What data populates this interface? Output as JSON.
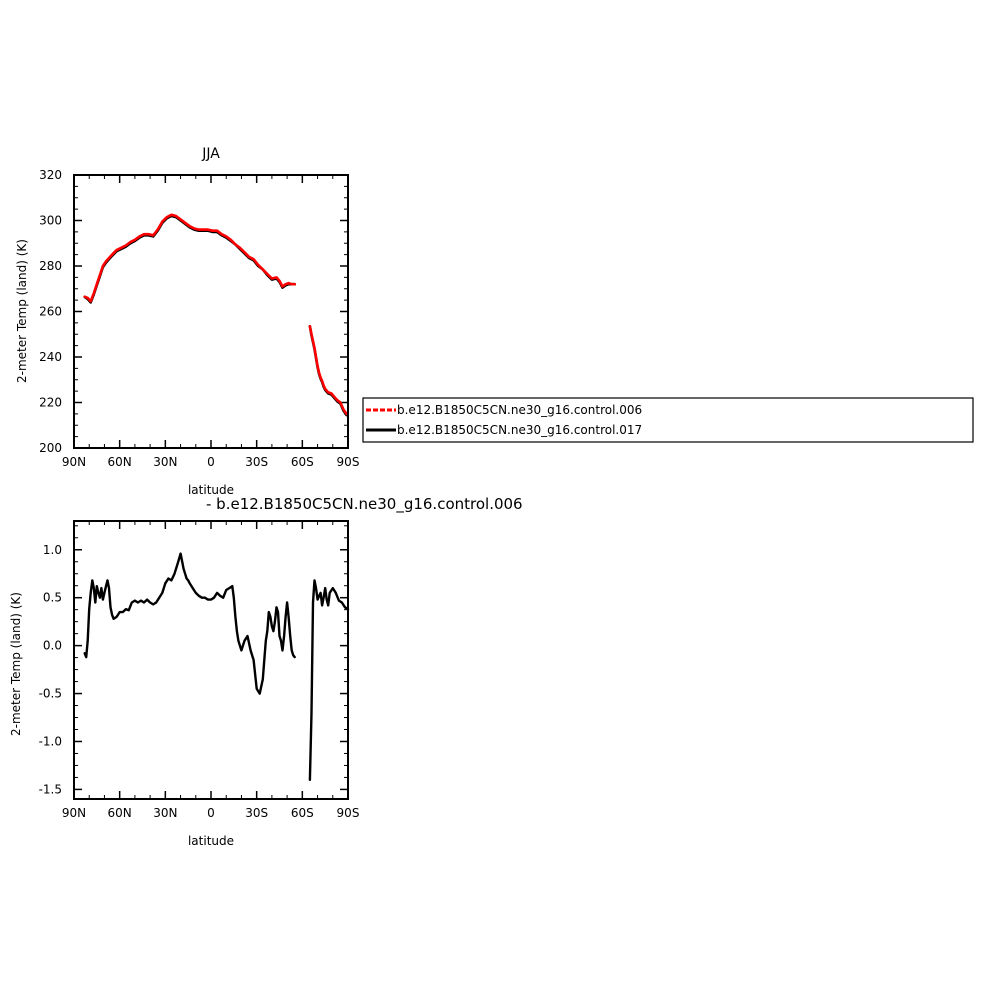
{
  "colors": {
    "run006": "#ff0000",
    "run017": "#000000",
    "diff": "#000000"
  },
  "chart_data": [
    {
      "type": "line",
      "title": "JJA",
      "xlabel": "latitude",
      "ylabel": "2-meter Temp (land) (K)",
      "x_tick_labels": [
        "90N",
        "60N",
        "30N",
        "0",
        "30S",
        "60S",
        "90S"
      ],
      "x_ticks": [
        90,
        60,
        30,
        0,
        -30,
        -60,
        -90
      ],
      "xlim": [
        90,
        -90
      ],
      "y_ticks": [
        200,
        220,
        240,
        260,
        280,
        300,
        320
      ],
      "ylim": [
        200,
        320
      ],
      "legend_placement": "right",
      "legend": [
        {
          "label": "b.e12.B1850C5CN.ne30_g16.control.006",
          "color": "#ff0000",
          "dash": true
        },
        {
          "label": "b.e12.B1850C5CN.ne30_g16.control.017",
          "color": "#000000",
          "dash": false
        }
      ],
      "series": [
        {
          "name": "b.e12.B1850C5CN.ne30_g16.control.006",
          "color": "#ff0000",
          "segments": [
            {
              "x": [
                83,
                81,
                79,
                77,
                75,
                73,
                71,
                69,
                67,
                65,
                62,
                59,
                56,
                53,
                50,
                47,
                44,
                41,
                38,
                35,
                32,
                29,
                26,
                23,
                20,
                17,
                14,
                11,
                8,
                5,
                2,
                -1,
                -4,
                -7,
                -10,
                -13,
                -16,
                -19,
                -22,
                -25,
                -28,
                -31,
                -34,
                -37,
                -40,
                -43,
                -45,
                -47,
                -49,
                -51,
                -53,
                -55
              ],
              "y": [
                266.5,
                266,
                264.5,
                268,
                272,
                276,
                280,
                282,
                283.5,
                285,
                287,
                288,
                289,
                290.5,
                291.5,
                293,
                294,
                294,
                293.5,
                296,
                299.5,
                301.5,
                302.5,
                302,
                300.5,
                299,
                297.5,
                296.5,
                296,
                296,
                296,
                295.5,
                295.5,
                294,
                293,
                291.5,
                289.5,
                288,
                286,
                284,
                283,
                280.5,
                278.5,
                276.5,
                274.5,
                275,
                273.5,
                271,
                272,
                272.5,
                272,
                272
              ]
            },
            {
              "x": [
                -65,
                -66,
                -67,
                -68,
                -69,
                -70,
                -71,
                -72,
                -73,
                -74,
                -75,
                -77,
                -79,
                -81,
                -83,
                -85,
                -87,
                -89
              ],
              "y": [
                253.5,
                250,
                247,
                244,
                240,
                236,
                233,
                231,
                229.5,
                227.5,
                226,
                224.5,
                224,
                222.5,
                221,
                220,
                217,
                215
              ]
            }
          ]
        },
        {
          "name": "b.e12.B1850C5CN.ne30_g16.control.017",
          "color": "#000000",
          "segments": [
            {
              "x": [
                83,
                81,
                79,
                77,
                75,
                73,
                71,
                69,
                67,
                65,
                62,
                59,
                56,
                53,
                50,
                47,
                44,
                41,
                38,
                35,
                32,
                29,
                26,
                23,
                20,
                17,
                14,
                11,
                8,
                5,
                2,
                -1,
                -4,
                -7,
                -10,
                -13,
                -16,
                -19,
                -22,
                -25,
                -28,
                -31,
                -34,
                -37,
                -40,
                -43,
                -45,
                -47,
                -49,
                -51,
                -53,
                -55
              ],
              "y": [
                266.4,
                265.5,
                264,
                267.5,
                271.5,
                275.5,
                279.5,
                281.5,
                283,
                284.5,
                286.5,
                287.5,
                288.5,
                290,
                291,
                292.5,
                293.5,
                293.5,
                293,
                295.5,
                299,
                301,
                302,
                301.5,
                300,
                298.5,
                297,
                296,
                295.5,
                295.5,
                295.5,
                295,
                295,
                293.5,
                292.5,
                291,
                289.5,
                287.5,
                285.5,
                283.5,
                282.5,
                280,
                278.5,
                276,
                274,
                274.5,
                273,
                270.5,
                271.5,
                272,
                272,
                272
              ]
            },
            {
              "x": [
                -65,
                -66,
                -67,
                -68,
                -69,
                -70,
                -71,
                -72,
                -73,
                -74,
                -75,
                -77,
                -79,
                -81,
                -83,
                -85,
                -87,
                -89
              ],
              "y": [
                253.5,
                249.5,
                246.5,
                243.5,
                239.5,
                235.5,
                232.5,
                230.5,
                229,
                227,
                225.5,
                224,
                223.5,
                222,
                220.5,
                219.5,
                216.5,
                214.5
              ]
            }
          ]
        }
      ]
    },
    {
      "type": "line",
      "title": "- b.e12.B1850C5CN.ne30_g16.control.006",
      "xlabel": "latitude",
      "ylabel": "2-meter Temp (land) (K)",
      "x_tick_labels": [
        "90N",
        "60N",
        "30N",
        "0",
        "30S",
        "60S",
        "90S"
      ],
      "x_ticks": [
        90,
        60,
        30,
        0,
        -30,
        -60,
        -90
      ],
      "xlim": [
        90,
        -90
      ],
      "y_ticks": [
        -1.5,
        -1.0,
        -0.5,
        0.0,
        0.5,
        1.0
      ],
      "y_tick_labels": [
        "-1.5",
        "-1.0",
        "-0.5",
        "0.0",
        "0.5",
        "1.0"
      ],
      "ylim": [
        -1.6,
        1.3
      ],
      "series": [
        {
          "color": "#000000",
          "segments": [
            {
              "x": [
                83,
                82,
                81,
                80,
                79,
                78,
                77,
                76,
                75,
                74,
                73,
                72,
                71,
                70,
                69,
                68,
                67,
                66,
                65,
                64,
                62,
                60,
                58,
                56,
                54,
                52,
                50,
                48,
                46,
                44,
                42,
                40,
                38,
                36,
                34,
                32,
                30,
                28,
                26,
                24,
                22,
                20,
                18,
                17,
                16,
                15,
                14,
                12,
                10,
                8,
                6,
                4,
                2,
                0,
                -2,
                -4,
                -6,
                -8,
                -10,
                -12,
                -14,
                -15,
                -16,
                -17,
                -18,
                -20,
                -22,
                -24,
                -26,
                -28,
                -30,
                -32,
                -34,
                -35,
                -36,
                -37,
                -38,
                -39,
                -40,
                -41,
                -42,
                -43,
                -44,
                -45,
                -46,
                -47,
                -48,
                -49,
                -50,
                -51,
                -52,
                -53,
                -54,
                -55
              ],
              "y": [
                -0.08,
                -0.12,
                0.05,
                0.38,
                0.55,
                0.68,
                0.6,
                0.45,
                0.62,
                0.55,
                0.5,
                0.6,
                0.48,
                0.55,
                0.62,
                0.68,
                0.6,
                0.4,
                0.32,
                0.28,
                0.3,
                0.35,
                0.35,
                0.38,
                0.37,
                0.45,
                0.47,
                0.45,
                0.47,
                0.45,
                0.48,
                0.45,
                0.43,
                0.45,
                0.5,
                0.55,
                0.65,
                0.7,
                0.68,
                0.75,
                0.85,
                0.96,
                0.8,
                0.75,
                0.7,
                0.68,
                0.65,
                0.6,
                0.55,
                0.52,
                0.5,
                0.5,
                0.48,
                0.48,
                0.5,
                0.55,
                0.52,
                0.5,
                0.58,
                0.6,
                0.62,
                0.5,
                0.3,
                0.15,
                0.05,
                -0.05,
                0.05,
                0.1,
                -0.05,
                -0.15,
                -0.45,
                -0.5,
                -0.35,
                -0.15,
                0.05,
                0.15,
                0.35,
                0.3,
                0.2,
                0.15,
                0.25,
                0.4,
                0.35,
                0.1,
                0.05,
                -0.05,
                0.1,
                0.3,
                0.45,
                0.3,
                0.1,
                -0.05,
                -0.1,
                -0.12
              ]
            },
            {
              "x": [
                -65,
                -66,
                -67,
                -68,
                -69,
                -70,
                -71,
                -72,
                -73,
                -74,
                -75,
                -76,
                -77,
                -78,
                -80,
                -82,
                -84,
                -86,
                -88,
                -90
              ],
              "y": [
                -1.4,
                -0.7,
                0.45,
                0.68,
                0.6,
                0.48,
                0.52,
                0.55,
                0.42,
                0.5,
                0.6,
                0.48,
                0.42,
                0.55,
                0.6,
                0.55,
                0.47,
                0.45,
                0.4,
                0.38
              ]
            }
          ]
        }
      ]
    }
  ]
}
